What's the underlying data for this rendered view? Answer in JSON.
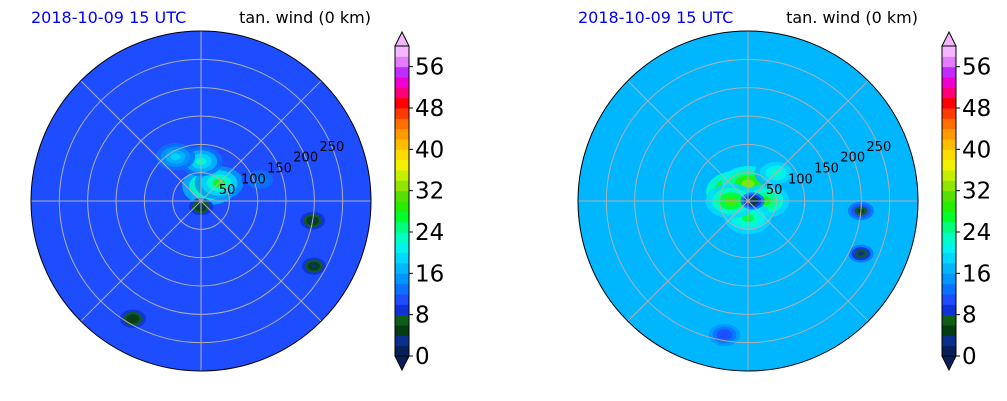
{
  "chart_data": [
    {
      "type": "heatmap",
      "projection": "polar",
      "title_left": "2018-10-09 15 UTC",
      "title_right": "tan. wind (0 km)",
      "radial_ticks": [
        "50",
        "100",
        "150",
        "200",
        "250"
      ],
      "radial_values": [
        50,
        100,
        150,
        200,
        250
      ],
      "rlim": [
        0,
        300
      ],
      "grid": true,
      "colorbar": {
        "ticks": [
          "0",
          "8",
          "16",
          "24",
          "32",
          "40",
          "48",
          "56"
        ],
        "tick_values": [
          0,
          8,
          16,
          24,
          32,
          40,
          48,
          56
        ],
        "range": [
          0,
          60
        ],
        "extend": "both"
      },
      "field": {
        "background": 10,
        "features": [
          {
            "r": 30,
            "theta_deg": 60,
            "value": 34
          },
          {
            "r": 45,
            "theta_deg": 45,
            "value": 28
          },
          {
            "r": 70,
            "theta_deg": 90,
            "value": 22
          },
          {
            "r": 90,
            "theta_deg": 120,
            "value": 18
          },
          {
            "r": 110,
            "theta_deg": 20,
            "value": 14
          },
          {
            "r": 200,
            "theta_deg": -10,
            "value": 3
          },
          {
            "r": 230,
            "theta_deg": -30,
            "value": 2
          },
          {
            "r": 240,
            "theta_deg": -120,
            "value": 4
          },
          {
            "r": 10,
            "theta_deg": -90,
            "value": 2
          }
        ]
      }
    },
    {
      "type": "heatmap",
      "projection": "polar",
      "title_left": "2018-10-09 15 UTC",
      "title_right": "tan. wind (0 km)",
      "radial_ticks": [
        "50",
        "100",
        "150",
        "200",
        "250"
      ],
      "radial_values": [
        50,
        100,
        150,
        200,
        250
      ],
      "rlim": [
        0,
        300
      ],
      "grid": true,
      "colorbar": {
        "ticks": [
          "0",
          "8",
          "16",
          "24",
          "32",
          "40",
          "48",
          "56"
        ],
        "tick_values": [
          0,
          8,
          16,
          24,
          32,
          40,
          48,
          56
        ],
        "range": [
          0,
          60
        ],
        "extend": "both"
      },
      "field": {
        "background": 16,
        "features": [
          {
            "r": 25,
            "theta_deg": 140,
            "value": 42
          },
          {
            "r": 30,
            "theta_deg": 90,
            "value": 32
          },
          {
            "r": 30,
            "theta_deg": 0,
            "value": 28
          },
          {
            "r": 30,
            "theta_deg": -90,
            "value": 26
          },
          {
            "r": 30,
            "theta_deg": 180,
            "value": 30
          },
          {
            "r": 70,
            "theta_deg": 45,
            "value": 22
          },
          {
            "r": 200,
            "theta_deg": -5,
            "value": 4
          },
          {
            "r": 220,
            "theta_deg": -25,
            "value": 3
          },
          {
            "r": 240,
            "theta_deg": -100,
            "value": 10
          },
          {
            "r": 8,
            "theta_deg": 0,
            "value": 2
          }
        ]
      }
    }
  ]
}
